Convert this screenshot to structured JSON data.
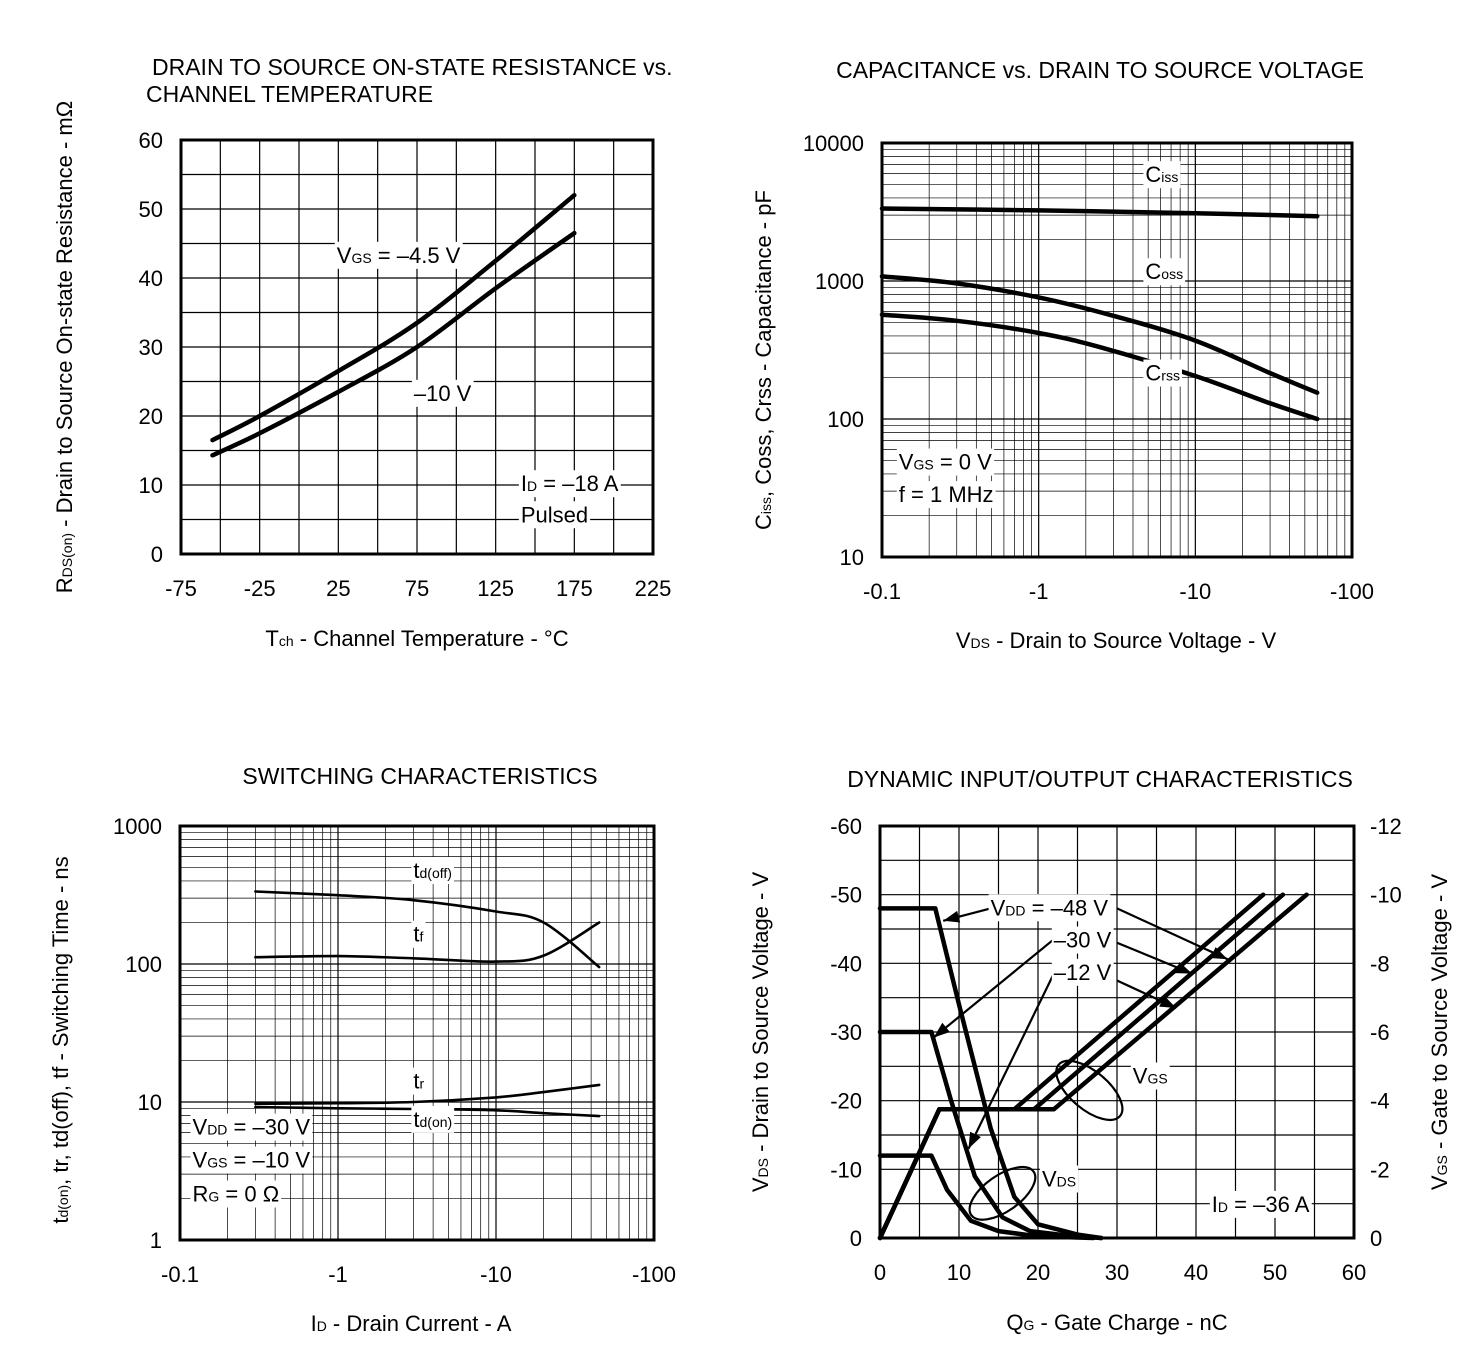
{
  "chart_data": [
    {
      "id": "rdson",
      "type": "line",
      "title_lines": [
        "DRAIN TO SOURCE ON-STATE RESISTANCE vs.",
        "CHANNEL TEMPERATURE"
      ],
      "xlabel": {
        "main": "T",
        "sub": "ch",
        "rest": " - Channel Temperature - °C"
      },
      "ylabel": {
        "main": "R",
        "sub": "DS(on)",
        "rest": " - Drain to Source On-state Resistance - mΩ"
      },
      "xscale": "linear",
      "yscale": "linear",
      "xlim": [
        -75,
        225
      ],
      "ylim": [
        0,
        60
      ],
      "xticks": [
        -75,
        -25,
        25,
        75,
        125,
        175,
        225
      ],
      "yticks": [
        0,
        10,
        20,
        30,
        40,
        50,
        60
      ],
      "series": [
        {
          "name": "VGS = -4.5 V",
          "x": [
            -55,
            -25,
            25,
            75,
            125,
            175
          ],
          "y": [
            16.5,
            20,
            26.5,
            33.5,
            42.5,
            52
          ]
        },
        {
          "name": "-10 V",
          "x": [
            -55,
            -25,
            25,
            75,
            125,
            175
          ],
          "y": [
            14.3,
            17.5,
            23.5,
            30,
            38.5,
            46.5
          ]
        }
      ],
      "annotations": [
        {
          "id": "vgs45",
          "main": "V",
          "sub": "GS",
          "rest": " = –4.5 V",
          "x": 24,
          "y": 42.2
        },
        {
          "id": "vgs10",
          "main": "",
          "sub": "",
          "rest": "–10 V",
          "x": 73,
          "y": 22.2
        },
        {
          "id": "id",
          "main": "I",
          "sub": "D",
          "rest": " = –18 A",
          "x": 141,
          "y": 9.1
        },
        {
          "id": "pulsed",
          "main": "",
          "sub": "",
          "rest": "Pulsed",
          "x": 141,
          "y": 4.6
        }
      ]
    },
    {
      "id": "capacitance",
      "type": "line",
      "title_lines": [
        "CAPACITANCE vs. DRAIN TO SOURCE VOLTAGE"
      ],
      "xlabel": {
        "main": "V",
        "sub": "DS",
        "rest": " - Drain to Source Voltage - V"
      },
      "ylabel": {
        "main": "C",
        "sub": "iss",
        "rest": ", Coss, Crss - Capacitance - pF"
      },
      "xscale": "log",
      "yscale": "log",
      "xlim": [
        0.1,
        100
      ],
      "ylim": [
        10,
        10000
      ],
      "xticks": [
        0.1,
        1,
        10,
        100
      ],
      "xticklabels": [
        "-0.1",
        "-1",
        "-10",
        "-100"
      ],
      "yticks": [
        10,
        100,
        1000,
        10000
      ],
      "yticklabels": [
        "10",
        "100",
        "1000",
        "10000"
      ],
      "series": [
        {
          "name": "Ciss",
          "x": [
            0.1,
            1,
            10,
            60
          ],
          "y": [
            3350,
            3250,
            3100,
            2950
          ]
        },
        {
          "name": "Coss",
          "x": [
            0.1,
            0.3,
            1,
            3,
            10,
            30,
            60
          ],
          "y": [
            1080,
            960,
            760,
            560,
            370,
            215,
            155
          ]
        },
        {
          "name": "Crss",
          "x": [
            0.1,
            0.3,
            1,
            2.5,
            10,
            30,
            60
          ],
          "y": [
            570,
            515,
            420,
            330,
            205,
            130,
            100
          ]
        }
      ],
      "annotations": [
        {
          "id": "ciss",
          "main": "C",
          "sub": "iss",
          "rest": "",
          "x": 4.8,
          "y": 5200
        },
        {
          "id": "coss",
          "main": "C",
          "sub": "oss",
          "rest": "",
          "x": 4.8,
          "y": 1030
        },
        {
          "id": "crss",
          "main": "C",
          "sub": "rss",
          "rest": "",
          "x": 4.8,
          "y": 190
        },
        {
          "id": "vgs",
          "main": "V",
          "sub": "GS",
          "rest": " = 0 V",
          "x": 0.128,
          "y": 43
        },
        {
          "id": "f",
          "main": "",
          "sub": "",
          "rest": "f = 1 MHz",
          "x": 0.128,
          "y": 25
        }
      ]
    },
    {
      "id": "switching",
      "type": "line",
      "title_lines": [
        "SWITCHING CHARACTERISTICS"
      ],
      "xlabel": {
        "main": "I",
        "sub": "D",
        "rest": " - Drain Current - A"
      },
      "ylabel": {
        "main": "t",
        "sub": "d(on)",
        "rest": ", tr, td(off), tf - Switching Time - ns"
      },
      "xscale": "log",
      "yscale": "log",
      "xlim": [
        0.1,
        100
      ],
      "ylim": [
        1,
        1000
      ],
      "xticks": [
        0.1,
        1,
        10,
        100
      ],
      "xticklabels": [
        "-0.1",
        "-1",
        "-10",
        "-100"
      ],
      "yticks": [
        1,
        10,
        100,
        1000
      ],
      "yticklabels": [
        "1",
        "10",
        "100",
        "1000"
      ],
      "series": [
        {
          "name": "td(off)",
          "x": [
            0.3,
            1,
            3,
            10,
            20,
            45
          ],
          "y": [
            335,
            315,
            290,
            240,
            200,
            95
          ]
        },
        {
          "name": "tf",
          "x": [
            0.3,
            1,
            3,
            10,
            20,
            45
          ],
          "y": [
            112,
            114,
            110,
            104,
            115,
            200
          ]
        },
        {
          "name": "tr",
          "x": [
            0.3,
            1,
            3,
            10,
            20,
            45
          ],
          "y": [
            9.7,
            9.8,
            10.0,
            10.8,
            11.8,
            13.3
          ]
        },
        {
          "name": "td(on)",
          "x": [
            0.3,
            1,
            3,
            10,
            20,
            45
          ],
          "y": [
            9.2,
            9.0,
            8.9,
            8.7,
            8.3,
            7.9
          ]
        }
      ],
      "annotations": [
        {
          "id": "tdoff",
          "main": "t",
          "sub": "d(off)",
          "rest": "",
          "x": 3.0,
          "y": 420
        },
        {
          "id": "tf",
          "main": "t",
          "sub": "f",
          "rest": "",
          "x": 3.0,
          "y": 145
        },
        {
          "id": "tr",
          "main": "t",
          "sub": "r",
          "rest": "",
          "x": 3.0,
          "y": 12.5
        },
        {
          "id": "tdon",
          "main": "t",
          "sub": "d(on)",
          "rest": "",
          "x": 3.0,
          "y": 6.6
        },
        {
          "id": "vdd",
          "main": "V",
          "sub": "DD",
          "rest": " = –30 V",
          "x": 0.12,
          "y": 5.8
        },
        {
          "id": "vgs",
          "main": "V",
          "sub": "GS",
          "rest": " = –10 V",
          "x": 0.12,
          "y": 3.35
        },
        {
          "id": "rg",
          "main": "R",
          "sub": "G",
          "rest": " = 0 Ω",
          "x": 0.12,
          "y": 1.9
        }
      ]
    },
    {
      "id": "dynamic",
      "type": "line",
      "title_lines": [
        "DYNAMIC INPUT/OUTPUT CHARACTERISTICS"
      ],
      "xlabel": {
        "main": "Q",
        "sub": "G",
        "rest": " - Gate Charge - nC"
      },
      "ylabel": {
        "main": "V",
        "sub": "DS",
        "rest": " - Drain to Source Voltage - V"
      },
      "y2label": {
        "main": "V",
        "sub": "GS",
        "rest": " - Gate to Source Voltage - V"
      },
      "xscale": "linear",
      "yscale": "linear",
      "xlim": [
        0,
        60
      ],
      "ylim": [
        0,
        -60
      ],
      "y2lim": [
        0,
        -12
      ],
      "xticks": [
        0,
        10,
        20,
        30,
        40,
        50,
        60
      ],
      "yticks": [
        0,
        -10,
        -20,
        -30,
        -40,
        -50,
        -60
      ],
      "yticklabels": [
        "0",
        "-10",
        "-20",
        "-30",
        "-40",
        "-50",
        "-60"
      ],
      "y2ticks": [
        0,
        -2,
        -4,
        -6,
        -8,
        -10,
        -12
      ],
      "y2ticklabels": [
        "0",
        "-2",
        "-4",
        "-6",
        "-8",
        "-10",
        "-12"
      ],
      "series_vds": [
        {
          "name": "VDD = -48 V",
          "x": [
            0,
            7,
            10,
            14,
            17,
            20,
            25,
            28
          ],
          "y": [
            -48,
            -48,
            -34,
            -16,
            -6,
            -2,
            -0.5,
            0
          ]
        },
        {
          "name": "VDD = -30 V",
          "x": [
            0,
            6.5,
            9,
            12,
            15.5,
            19,
            24,
            28
          ],
          "y": [
            -30,
            -30,
            -20,
            -9,
            -3,
            -1,
            -0.3,
            0
          ]
        },
        {
          "name": "VDD = -12 V",
          "x": [
            0,
            6.5,
            8.5,
            11.5,
            15,
            19,
            24,
            27
          ],
          "y": [
            -12,
            -12,
            -7,
            -2.5,
            -1,
            -0.4,
            -0.1,
            0
          ]
        }
      ],
      "series_vgs": [
        {
          "name": "VGS (-12 V)",
          "x": [
            0,
            7.5,
            17,
            48.5
          ],
          "y": [
            0,
            -3.75,
            -3.75,
            -10
          ]
        },
        {
          "name": "VGS (-30 V)",
          "x": [
            0,
            7.5,
            19.5,
            51
          ],
          "y": [
            0,
            -3.75,
            -3.75,
            -10
          ]
        },
        {
          "name": "VGS (-48 V)",
          "x": [
            0,
            7.5,
            22,
            54
          ],
          "y": [
            0,
            -3.75,
            -3.75,
            -10
          ]
        }
      ],
      "annotations": [
        {
          "id": "vdd48",
          "main": "V",
          "sub": "DD",
          "rest": " = –48 V",
          "x": 14,
          "y": -47
        },
        {
          "id": "vdd30",
          "main": "",
          "sub": "",
          "rest": "–30 V",
          "x": 22,
          "y": -42.3
        },
        {
          "id": "vdd12",
          "main": "",
          "sub": "",
          "rest": "–12 V",
          "x": 22,
          "y": -37.6
        },
        {
          "id": "vgslabel",
          "main": "V",
          "sub": "GS",
          "rest": "",
          "x": 32,
          "y": -22.5
        },
        {
          "id": "vdslabel",
          "main": "V",
          "sub": "DS",
          "rest": "",
          "x": 20.5,
          "y": -7.5
        },
        {
          "id": "id",
          "main": "I",
          "sub": "D",
          "rest": " = –36 A",
          "x": 42,
          "y": -3.8
        }
      ]
    }
  ]
}
